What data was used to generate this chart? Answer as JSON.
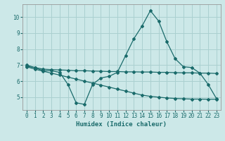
{
  "xlabel": "Humidex (Indice chaleur)",
  "bg_color": "#cce8e8",
  "line_color": "#1a6b6b",
  "grid_color": "#aad0d0",
  "xlim": [
    -0.5,
    23.5
  ],
  "ylim": [
    4.2,
    10.8
  ],
  "yticks": [
    5,
    6,
    7,
    8,
    9,
    10
  ],
  "xticks": [
    0,
    1,
    2,
    3,
    4,
    5,
    6,
    7,
    8,
    9,
    10,
    11,
    12,
    13,
    14,
    15,
    16,
    17,
    18,
    19,
    20,
    21,
    22,
    23
  ],
  "line1_x": [
    0,
    1,
    2,
    3,
    4,
    5,
    6,
    7,
    8,
    9,
    10,
    11,
    12,
    13,
    14,
    15,
    16,
    17,
    18,
    19,
    20,
    21,
    22,
    23
  ],
  "line1_y": [
    7.0,
    6.85,
    6.65,
    6.65,
    6.55,
    5.8,
    4.65,
    4.55,
    5.8,
    6.2,
    6.3,
    6.55,
    7.6,
    8.65,
    9.45,
    10.4,
    9.75,
    8.45,
    7.4,
    6.9,
    6.85,
    6.5,
    5.8,
    4.92
  ],
  "line2_x": [
    0,
    1,
    2,
    3,
    4,
    5,
    6,
    7,
    8,
    9,
    10,
    11,
    12,
    13,
    14,
    15,
    16,
    17,
    18,
    19,
    20,
    21,
    22,
    23
  ],
  "line2_y": [
    6.92,
    6.85,
    6.75,
    6.72,
    6.7,
    6.68,
    6.65,
    6.65,
    6.63,
    6.62,
    6.6,
    6.6,
    6.58,
    6.58,
    6.57,
    6.57,
    6.55,
    6.55,
    6.53,
    6.52,
    6.52,
    6.5,
    6.5,
    6.48
  ],
  "line3_x": [
    0,
    1,
    2,
    3,
    4,
    5,
    6,
    7,
    8,
    9,
    10,
    11,
    12,
    13,
    14,
    15,
    16,
    17,
    18,
    19,
    20,
    21,
    22,
    23
  ],
  "line3_y": [
    6.9,
    6.75,
    6.62,
    6.5,
    6.38,
    6.25,
    6.13,
    6.0,
    5.88,
    5.75,
    5.63,
    5.5,
    5.38,
    5.25,
    5.13,
    5.05,
    5.0,
    4.95,
    4.92,
    4.9,
    4.88,
    4.88,
    4.87,
    4.87
  ]
}
